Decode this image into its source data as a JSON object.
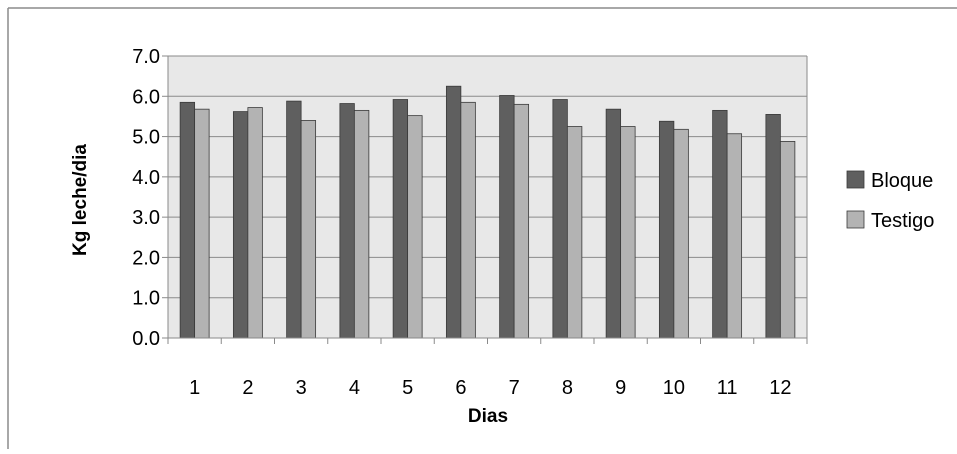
{
  "chart_data": {
    "type": "bar",
    "title": "",
    "xlabel": "Dias",
    "ylabel": "Kg leche/dia",
    "categories": [
      "1",
      "2",
      "3",
      "4",
      "5",
      "6",
      "7",
      "8",
      "9",
      "10",
      "11",
      "12"
    ],
    "series": [
      {
        "name": "Bloque",
        "color": "#5f5f5f",
        "values": [
          5.85,
          5.62,
          5.88,
          5.82,
          5.92,
          6.25,
          6.02,
          5.92,
          5.68,
          5.38,
          5.65,
          5.55
        ]
      },
      {
        "name": "Testigo",
        "color": "#b3b3b3",
        "values": [
          5.68,
          5.72,
          5.4,
          5.65,
          5.52,
          5.85,
          5.8,
          5.25,
          5.25,
          5.18,
          5.07,
          4.88
        ]
      }
    ],
    "ylim": [
      0,
      7
    ],
    "yticks": [
      "0.0",
      "1.0",
      "2.0",
      "3.0",
      "4.0",
      "5.0",
      "6.0",
      "7.0"
    ],
    "grid": true,
    "legend_position": "right",
    "plot_background": "#e8e8e8"
  }
}
